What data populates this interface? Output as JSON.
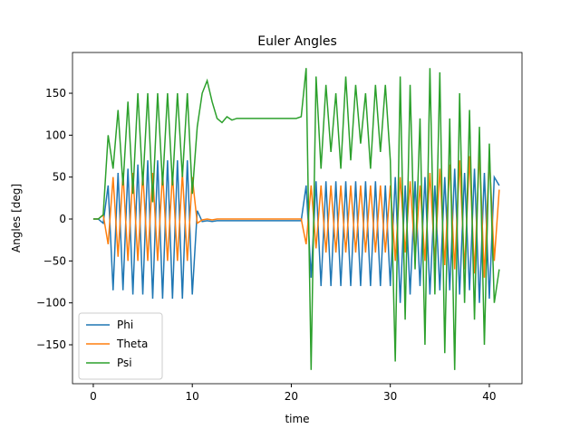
{
  "chart_data": {
    "type": "line",
    "title": "Euler Angles",
    "xlabel": "time",
    "ylabel": "Angles [deg]",
    "x": [
      0,
      0.5,
      1,
      1.5,
      2,
      2.5,
      3,
      3.5,
      4,
      4.5,
      5,
      5.5,
      6,
      6.5,
      7,
      7.5,
      8,
      8.5,
      9,
      9.5,
      10,
      10.5,
      11,
      11.5,
      12,
      12.5,
      13,
      13.5,
      14,
      14.5,
      15,
      15.5,
      16,
      16.5,
      17,
      17.5,
      18,
      18.5,
      19,
      19.5,
      20,
      20.5,
      21,
      21.5,
      22,
      22.5,
      23,
      23.5,
      24,
      24.5,
      25,
      25.5,
      26,
      26.5,
      27,
      27.5,
      28,
      28.5,
      29,
      29.5,
      30,
      30.5,
      31,
      31.5,
      32,
      32.5,
      33,
      33.5,
      34,
      34.5,
      35,
      35.5,
      36,
      36.5,
      37,
      37.5,
      38,
      38.5,
      39,
      39.5,
      40,
      40.5,
      41
    ],
    "series": [
      {
        "name": "Phi",
        "color": "#1f77b4",
        "values": [
          0,
          0,
          -5,
          40,
          -85,
          55,
          -85,
          60,
          -90,
          65,
          -90,
          70,
          -95,
          70,
          -95,
          70,
          -95,
          70,
          -95,
          70,
          -90,
          10,
          -3,
          -2,
          -3,
          -2,
          -2,
          -2,
          -2,
          -2,
          -2,
          -2,
          -2,
          -2,
          -2,
          -2,
          -2,
          -2,
          -2,
          -2,
          -2,
          -2,
          -2,
          40,
          -70,
          45,
          -80,
          45,
          -80,
          45,
          -80,
          45,
          -80,
          45,
          -80,
          45,
          -80,
          45,
          -80,
          40,
          -80,
          50,
          -100,
          40,
          -90,
          45,
          -80,
          50,
          -90,
          40,
          -85,
          50,
          -85,
          60,
          -90,
          55,
          -85,
          60,
          -100,
          55,
          -95,
          50,
          40
        ]
      },
      {
        "name": "Theta",
        "color": "#ff7f0e",
        "values": [
          0,
          0,
          5,
          -30,
          50,
          -45,
          55,
          -50,
          55,
          -50,
          55,
          -50,
          55,
          -50,
          55,
          -50,
          55,
          -50,
          55,
          -50,
          50,
          -5,
          -1,
          0,
          -1,
          0,
          0,
          0,
          0,
          0,
          0,
          0,
          0,
          0,
          0,
          0,
          0,
          0,
          0,
          0,
          0,
          0,
          0,
          -30,
          40,
          -35,
          40,
          -40,
          40,
          -40,
          40,
          -40,
          40,
          -40,
          40,
          -40,
          40,
          -40,
          40,
          -40,
          40,
          -50,
          50,
          -40,
          45,
          -45,
          40,
          -50,
          55,
          -50,
          60,
          -55,
          65,
          -60,
          70,
          -60,
          75,
          -65,
          80,
          -70,
          75,
          -50,
          35
        ]
      },
      {
        "name": "Psi",
        "color": "#2ca02c",
        "values": [
          0,
          0,
          5,
          100,
          60,
          130,
          40,
          140,
          30,
          150,
          40,
          150,
          20,
          150,
          40,
          150,
          40,
          150,
          50,
          150,
          30,
          110,
          150,
          165,
          140,
          120,
          115,
          122,
          118,
          120,
          120,
          120,
          120,
          120,
          120,
          120,
          120,
          120,
          120,
          120,
          120,
          120,
          122,
          180,
          -180,
          170,
          60,
          160,
          80,
          150,
          60,
          170,
          70,
          160,
          90,
          150,
          60,
          160,
          80,
          160,
          70,
          -170,
          170,
          -120,
          160,
          -60,
          120,
          -150,
          180,
          -90,
          175,
          -160,
          120,
          -180,
          150,
          -100,
          130,
          -120,
          110,
          -150,
          90,
          -100,
          -60
        ]
      }
    ],
    "xlim": [
      -2.1,
      43.3
    ],
    "xticks": [
      0,
      10,
      20,
      30,
      40
    ],
    "ylim": [
      -196.4,
      198.6
    ],
    "yticks": [
      {
        "value": -150,
        "label": "−150"
      },
      {
        "value": -100,
        "label": "−100"
      },
      {
        "value": -50,
        "label": "−50"
      },
      0,
      50,
      100,
      150
    ],
    "legend": "lower left",
    "grid": false
  }
}
